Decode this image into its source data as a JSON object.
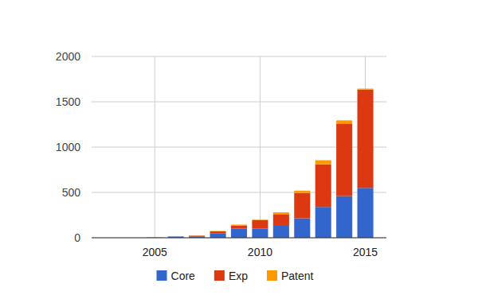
{
  "chart_data": {
    "type": "bar",
    "stacked": true,
    "grid": true,
    "legend": "bottom",
    "x": [
      2005,
      2006,
      2007,
      2008,
      2009,
      2010,
      2011,
      2012,
      2013,
      2014,
      2015
    ],
    "xlim": [
      2002,
      2016
    ],
    "xticks": [
      2005,
      2010,
      2015
    ],
    "ylim": [
      0,
      2000
    ],
    "yticks": [
      0,
      500,
      1000,
      1500,
      2000
    ],
    "series": [
      {
        "name": "Core",
        "color": "#3366cc",
        "values": [
          2,
          10,
          15,
          50,
          100,
          100,
          140,
          215,
          340,
          460,
          550
        ]
      },
      {
        "name": "Exp",
        "color": "#dc3912",
        "values": [
          1,
          5,
          8,
          20,
          35,
          95,
          120,
          280,
          470,
          800,
          1085
        ]
      },
      {
        "name": "Patent",
        "color": "#ff9900",
        "values": [
          2,
          2,
          2,
          5,
          10,
          5,
          20,
          25,
          45,
          35,
          10
        ]
      }
    ]
  }
}
